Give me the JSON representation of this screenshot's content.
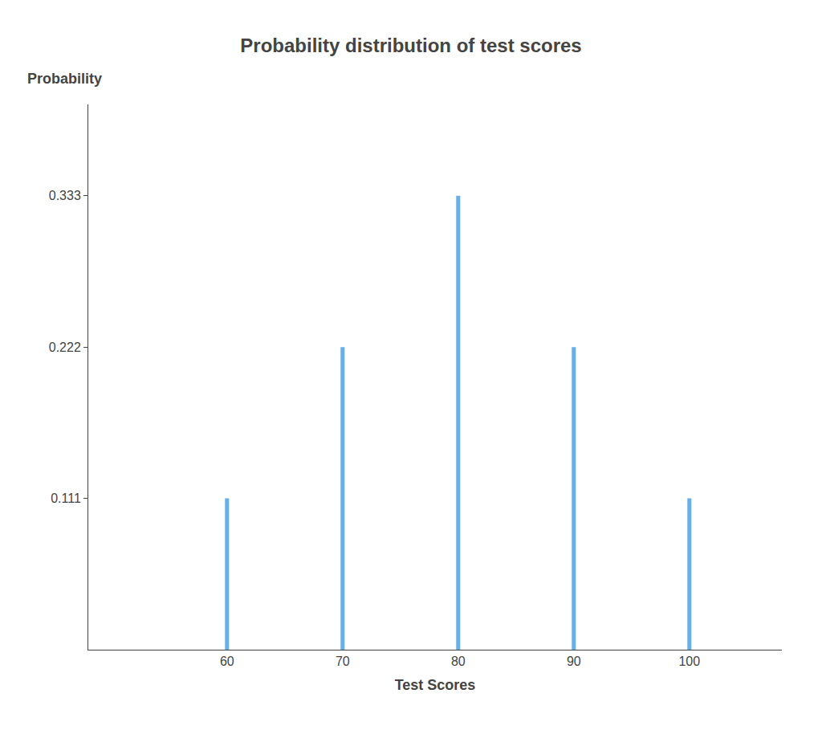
{
  "chart_data": {
    "type": "bar",
    "title": "Probability distribution of test scores",
    "xlabel": "Test Scores",
    "ylabel": "Probability",
    "x": [
      60,
      70,
      80,
      90,
      100
    ],
    "values": [
      0.111,
      0.222,
      0.333,
      0.222,
      0.111
    ],
    "color": "#6aaee8",
    "xlim": [
      48,
      108
    ],
    "xticks": [
      60,
      70,
      80,
      90,
      100
    ],
    "ylim": [
      0,
      0.4
    ],
    "yticks": [
      0.111,
      0.222,
      0.333
    ],
    "grid": false
  }
}
